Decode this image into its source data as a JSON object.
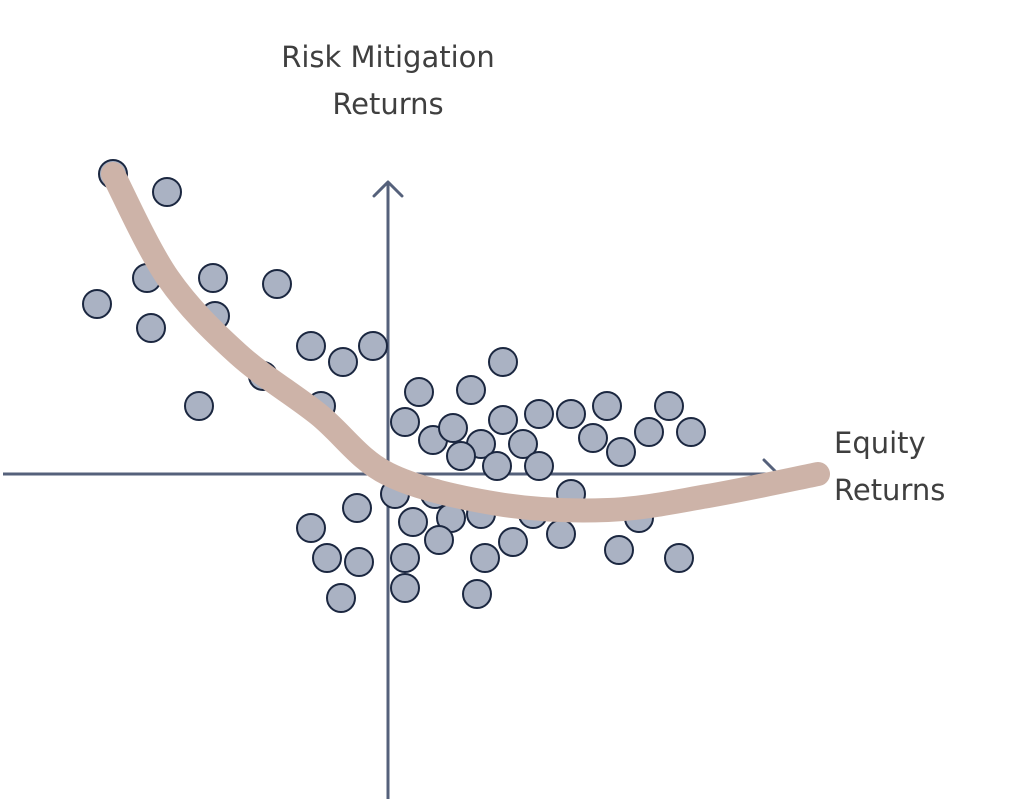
{
  "chart_data": {
    "type": "scatter",
    "title": "",
    "xlabel": [
      "Equity",
      "Returns"
    ],
    "ylabel": [
      "Risk Mitigation",
      "Returns"
    ],
    "xlim": [
      -385,
      390
    ],
    "ylim": [
      -325,
      300
    ],
    "grid": false,
    "legend": "none",
    "colors": {
      "points_fill": "#aab2c3",
      "points_stroke": "#1b2740",
      "axes": "#55617b",
      "trend": "#cdb3a8",
      "label": "#3f3f3f"
    },
    "points": [
      [
        -275,
        300
      ],
      [
        -221,
        282
      ],
      [
        -291,
        170
      ],
      [
        -241,
        196
      ],
      [
        -175,
        196
      ],
      [
        -111,
        190
      ],
      [
        -173,
        158
      ],
      [
        -237,
        146
      ],
      [
        -189,
        68
      ],
      [
        -125,
        98
      ],
      [
        -77,
        128
      ],
      [
        -45,
        112
      ],
      [
        -15,
        128
      ],
      [
        -67,
        68
      ],
      [
        31,
        82
      ],
      [
        83,
        84
      ],
      [
        115,
        112
      ],
      [
        17,
        52
      ],
      [
        45,
        34
      ],
      [
        65,
        46
      ],
      [
        93,
        30
      ],
      [
        73,
        18
      ],
      [
        109,
        8
      ],
      [
        115,
        54
      ],
      [
        135,
        30
      ],
      [
        151,
        60
      ],
      [
        183,
        60
      ],
      [
        205,
        36
      ],
      [
        219,
        68
      ],
      [
        233,
        22
      ],
      [
        261,
        42
      ],
      [
        281,
        68
      ],
      [
        303,
        42
      ],
      [
        151,
        8
      ],
      [
        7,
        -20
      ],
      [
        47,
        -20
      ],
      [
        -31,
        -34
      ],
      [
        -77,
        -54
      ],
      [
        25,
        -48
      ],
      [
        63,
        -44
      ],
      [
        93,
        -40
      ],
      [
        145,
        -40
      ],
      [
        183,
        -20
      ],
      [
        51,
        -66
      ],
      [
        17,
        -84
      ],
      [
        -61,
        -84
      ],
      [
        -29,
        -88
      ],
      [
        97,
        -84
      ],
      [
        125,
        -68
      ],
      [
        173,
        -60
      ],
      [
        231,
        -76
      ],
      [
        251,
        -44
      ],
      [
        291,
        -84
      ],
      [
        17,
        -114
      ],
      [
        -47,
        -124
      ],
      [
        89,
        -120
      ]
    ],
    "trend_curve": [
      [
        -275,
        300
      ],
      [
        -220,
        196
      ],
      [
        -150,
        120
      ],
      [
        -70,
        60
      ],
      [
        0,
        0
      ],
      [
        110,
        -30
      ],
      [
        220,
        -36
      ],
      [
        320,
        -22
      ],
      [
        430,
        0
      ]
    ]
  }
}
